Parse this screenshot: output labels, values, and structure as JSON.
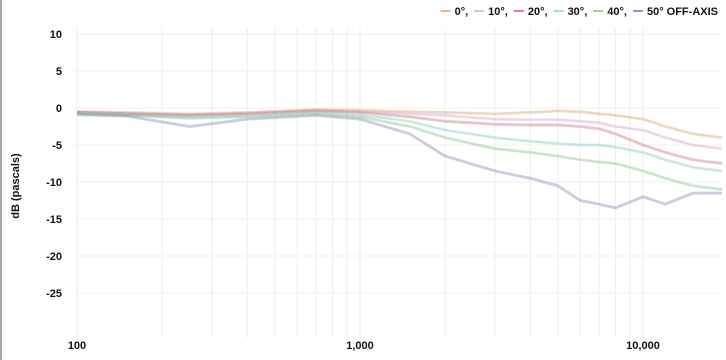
{
  "chart_data": {
    "type": "line",
    "title": "",
    "xlabel": "",
    "ylabel": "dB (pascals)",
    "x_scale": "log",
    "xlim": [
      100,
      20000
    ],
    "ylim": [
      -30,
      10
    ],
    "x_ticks": [
      {
        "value": 100,
        "label": "100"
      },
      {
        "value": 1000,
        "label": "1,000"
      },
      {
        "value": 10000,
        "label": "10,000"
      }
    ],
    "y_ticks": [
      {
        "value": 10,
        "label": "10"
      },
      {
        "value": 5,
        "label": "5"
      },
      {
        "value": 0,
        "label": "0"
      },
      {
        "value": -5,
        "label": "-5"
      },
      {
        "value": -10,
        "label": "-10"
      },
      {
        "value": -15,
        "label": "-15"
      },
      {
        "value": -20,
        "label": "-20"
      },
      {
        "value": -25,
        "label": "-25"
      }
    ],
    "grid": true,
    "legend_position": "top-right",
    "legend_suffix": "OFF-AXIS",
    "x": [
      100,
      150,
      250,
      400,
      700,
      1000,
      1500,
      2000,
      3000,
      4000,
      5000,
      6000,
      7000,
      8000,
      10000,
      12000,
      15000,
      20000
    ],
    "series": [
      {
        "name": "0°",
        "color": "#f0a050",
        "values": [
          -0.5,
          -0.6,
          -0.8,
          -0.6,
          -0.2,
          -0.3,
          -0.5,
          -0.6,
          -0.8,
          -0.6,
          -0.4,
          -0.5,
          -0.8,
          -1.0,
          -1.5,
          -2.5,
          -3.5,
          -4.0
        ]
      },
      {
        "name": "10°",
        "color": "#f0a0e0",
        "values": [
          -0.5,
          -0.7,
          -0.9,
          -0.7,
          -0.3,
          -0.5,
          -0.8,
          -1.0,
          -1.5,
          -1.6,
          -1.6,
          -1.8,
          -2.0,
          -2.5,
          -3.0,
          -4.0,
          -5.0,
          -5.5
        ]
      },
      {
        "name": "20°",
        "color": "#e05060",
        "values": [
          -0.6,
          -0.8,
          -1.0,
          -0.8,
          -0.4,
          -0.6,
          -1.2,
          -1.8,
          -2.2,
          -2.3,
          -2.3,
          -2.5,
          -2.8,
          -3.5,
          -5.0,
          -6.0,
          -7.0,
          -7.5
        ]
      },
      {
        "name": "30°",
        "color": "#70e0d0",
        "values": [
          -0.7,
          -0.9,
          -1.2,
          -1.0,
          -0.6,
          -0.9,
          -1.8,
          -3.0,
          -4.0,
          -4.5,
          -4.8,
          -5.0,
          -5.0,
          -5.3,
          -6.0,
          -7.0,
          -8.0,
          -8.5
        ]
      },
      {
        "name": "40°",
        "color": "#70d070",
        "values": [
          -0.8,
          -1.0,
          -1.4,
          -1.2,
          -0.8,
          -1.2,
          -2.5,
          -4.0,
          -5.5,
          -6.0,
          -6.5,
          -7.0,
          -7.3,
          -7.5,
          -8.5,
          -9.5,
          -10.5,
          -11.0
        ]
      },
      {
        "name": "50°",
        "color": "#6070c0",
        "values": [
          -0.9,
          -1.1,
          -2.5,
          -1.5,
          -1.0,
          -1.5,
          -3.5,
          -6.5,
          -8.5,
          -9.5,
          -10.5,
          -12.5,
          -13.0,
          -13.5,
          -12.0,
          -13.0,
          -11.5,
          -11.5
        ]
      }
    ]
  }
}
